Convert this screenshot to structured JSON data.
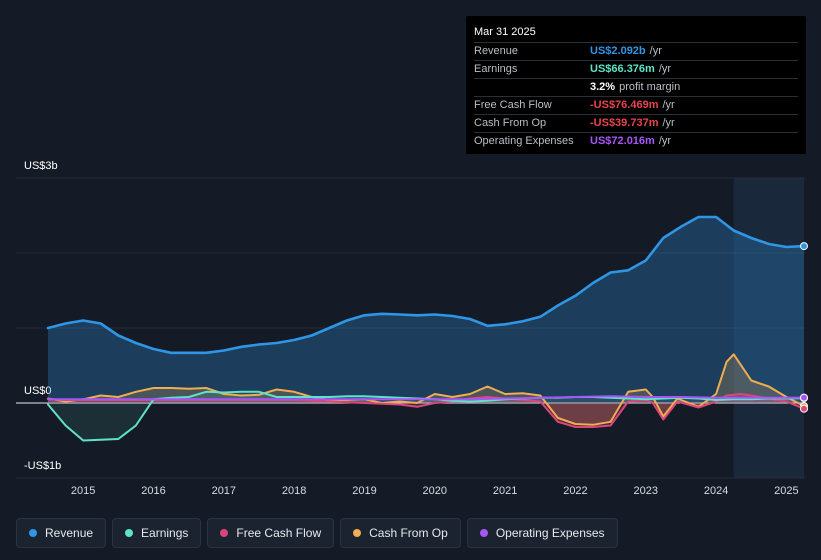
{
  "tooltip": {
    "date": "Mar 31 2025",
    "rows": [
      {
        "label": "Revenue",
        "value": "US$2.092b",
        "unit": "/yr",
        "color": "#2f96e6"
      },
      {
        "label": "Earnings",
        "value": "US$66.376m",
        "unit": "/yr",
        "color": "#5fe3c8"
      },
      {
        "label": "",
        "value": "3.2%",
        "unit": "profit margin",
        "color": "#ffffff"
      },
      {
        "label": "Free Cash Flow",
        "value": "-US$76.469m",
        "unit": "/yr",
        "color": "#e8434e"
      },
      {
        "label": "Cash From Op",
        "value": "-US$39.737m",
        "unit": "/yr",
        "color": "#e8434e"
      },
      {
        "label": "Operating Expenses",
        "value": "US$72.016m",
        "unit": "/yr",
        "color": "#a855f7"
      }
    ]
  },
  "legend": [
    {
      "label": "Revenue",
      "color": "#2f96e6"
    },
    {
      "label": "Earnings",
      "color": "#5fe3c8"
    },
    {
      "label": "Free Cash Flow",
      "color": "#d9477a"
    },
    {
      "label": "Cash From Op",
      "color": "#f0ad52"
    },
    {
      "label": "Operating Expenses",
      "color": "#a855f7"
    }
  ],
  "chart_data": {
    "type": "area",
    "title": "",
    "y_unit": "US$ billions",
    "ylim": [
      -1,
      3
    ],
    "y_ticks": [
      {
        "value": 3,
        "label": "US$3b"
      },
      {
        "value": 0,
        "label": "US$0"
      },
      {
        "value": -1,
        "label": "-US$1b"
      }
    ],
    "x_ticks": [
      "2015",
      "2016",
      "2017",
      "2018",
      "2019",
      "2020",
      "2021",
      "2022",
      "2023",
      "2024",
      "2025"
    ],
    "xlim": [
      2014.5,
      2025.25
    ],
    "highlight_from": 2024.25,
    "series": [
      {
        "name": "Revenue",
        "color": "#2f96e6",
        "points": [
          [
            2014.5,
            1.0
          ],
          [
            2014.75,
            1.06
          ],
          [
            2015.0,
            1.1
          ],
          [
            2015.25,
            1.06
          ],
          [
            2015.5,
            0.9
          ],
          [
            2015.75,
            0.8
          ],
          [
            2016.0,
            0.72
          ],
          [
            2016.25,
            0.67
          ],
          [
            2016.5,
            0.67
          ],
          [
            2016.75,
            0.67
          ],
          [
            2017.0,
            0.7
          ],
          [
            2017.25,
            0.75
          ],
          [
            2017.5,
            0.78
          ],
          [
            2017.75,
            0.8
          ],
          [
            2018.0,
            0.84
          ],
          [
            2018.25,
            0.9
          ],
          [
            2018.5,
            1.0
          ],
          [
            2018.75,
            1.1
          ],
          [
            2019.0,
            1.17
          ],
          [
            2019.25,
            1.19
          ],
          [
            2019.5,
            1.18
          ],
          [
            2019.75,
            1.17
          ],
          [
            2020.0,
            1.18
          ],
          [
            2020.25,
            1.16
          ],
          [
            2020.5,
            1.12
          ],
          [
            2020.75,
            1.03
          ],
          [
            2021.0,
            1.05
          ],
          [
            2021.25,
            1.09
          ],
          [
            2021.5,
            1.15
          ],
          [
            2021.75,
            1.3
          ],
          [
            2022.0,
            1.43
          ],
          [
            2022.25,
            1.6
          ],
          [
            2022.5,
            1.74
          ],
          [
            2022.75,
            1.77
          ],
          [
            2023.0,
            1.9
          ],
          [
            2023.25,
            2.2
          ],
          [
            2023.5,
            2.35
          ],
          [
            2023.75,
            2.48
          ],
          [
            2024.0,
            2.48
          ],
          [
            2024.25,
            2.3
          ],
          [
            2024.5,
            2.2
          ],
          [
            2024.75,
            2.12
          ],
          [
            2025.0,
            2.08
          ],
          [
            2025.25,
            2.092
          ]
        ]
      },
      {
        "name": "Earnings",
        "color": "#5fe3c8",
        "points": [
          [
            2014.5,
            -0.02
          ],
          [
            2014.75,
            -0.3
          ],
          [
            2015.0,
            -0.5
          ],
          [
            2015.25,
            -0.49
          ],
          [
            2015.5,
            -0.48
          ],
          [
            2015.75,
            -0.3
          ],
          [
            2016.0,
            0.05
          ],
          [
            2016.25,
            0.07
          ],
          [
            2016.5,
            0.08
          ],
          [
            2016.75,
            0.15
          ],
          [
            2017.0,
            0.14
          ],
          [
            2017.25,
            0.15
          ],
          [
            2017.5,
            0.15
          ],
          [
            2017.75,
            0.08
          ],
          [
            2018.0,
            0.08
          ],
          [
            2018.25,
            0.08
          ],
          [
            2018.5,
            0.08
          ],
          [
            2018.75,
            0.09
          ],
          [
            2019.0,
            0.09
          ],
          [
            2019.25,
            0.08
          ],
          [
            2019.5,
            0.07
          ],
          [
            2019.75,
            0.06
          ],
          [
            2020.0,
            0.05
          ],
          [
            2020.25,
            0.03
          ],
          [
            2020.5,
            0.02
          ],
          [
            2020.75,
            0.03
          ],
          [
            2021.0,
            0.05
          ],
          [
            2021.25,
            0.06
          ],
          [
            2021.5,
            0.07
          ],
          [
            2021.75,
            0.07
          ],
          [
            2022.0,
            0.08
          ],
          [
            2022.25,
            0.08
          ],
          [
            2022.5,
            0.07
          ],
          [
            2022.75,
            0.06
          ],
          [
            2023.0,
            0.05
          ],
          [
            2023.25,
            0.06
          ],
          [
            2023.5,
            0.07
          ],
          [
            2023.75,
            0.06
          ],
          [
            2024.0,
            0.04
          ],
          [
            2024.25,
            0.05
          ],
          [
            2024.5,
            0.05
          ],
          [
            2024.75,
            0.06
          ],
          [
            2025.0,
            0.06
          ],
          [
            2025.25,
            0.066
          ]
        ]
      },
      {
        "name": "Free Cash Flow",
        "color": "#d9477a",
        "points": [
          [
            2014.5,
            0.05
          ],
          [
            2014.75,
            0.04
          ],
          [
            2015.0,
            0.04
          ],
          [
            2015.5,
            0.04
          ],
          [
            2016.0,
            0.04
          ],
          [
            2016.5,
            0.04
          ],
          [
            2017.0,
            0.04
          ],
          [
            2017.5,
            0.04
          ],
          [
            2018.0,
            0.04
          ],
          [
            2018.5,
            0.02
          ],
          [
            2019.0,
            0.0
          ],
          [
            2019.5,
            -0.02
          ],
          [
            2019.75,
            -0.05
          ],
          [
            2020.0,
            0.0
          ],
          [
            2020.25,
            0.02
          ],
          [
            2020.5,
            0.06
          ],
          [
            2020.75,
            0.08
          ],
          [
            2021.0,
            0.06
          ],
          [
            2021.25,
            0.04
          ],
          [
            2021.5,
            0.02
          ],
          [
            2021.75,
            -0.25
          ],
          [
            2022.0,
            -0.32
          ],
          [
            2022.25,
            -0.32
          ],
          [
            2022.5,
            -0.3
          ],
          [
            2022.75,
            0.02
          ],
          [
            2023.0,
            0.04
          ],
          [
            2023.1,
            0.0
          ],
          [
            2023.25,
            -0.22
          ],
          [
            2023.45,
            0.02
          ],
          [
            2023.75,
            -0.06
          ],
          [
            2024.0,
            0.02
          ],
          [
            2024.15,
            0.1
          ],
          [
            2024.35,
            0.12
          ],
          [
            2024.5,
            0.1
          ],
          [
            2024.75,
            0.06
          ],
          [
            2025.0,
            0.02
          ],
          [
            2025.25,
            -0.076
          ]
        ]
      },
      {
        "name": "Cash From Op",
        "color": "#f0ad52",
        "points": [
          [
            2014.5,
            0.06
          ],
          [
            2014.75,
            0.02
          ],
          [
            2015.0,
            0.05
          ],
          [
            2015.25,
            0.1
          ],
          [
            2015.5,
            0.08
          ],
          [
            2015.75,
            0.15
          ],
          [
            2016.0,
            0.2
          ],
          [
            2016.25,
            0.2
          ],
          [
            2016.5,
            0.19
          ],
          [
            2016.75,
            0.2
          ],
          [
            2017.0,
            0.12
          ],
          [
            2017.25,
            0.1
          ],
          [
            2017.5,
            0.11
          ],
          [
            2017.75,
            0.18
          ],
          [
            2018.0,
            0.15
          ],
          [
            2018.25,
            0.08
          ],
          [
            2018.5,
            0.04
          ],
          [
            2018.75,
            0.04
          ],
          [
            2019.0,
            0.05
          ],
          [
            2019.25,
            0.0
          ],
          [
            2019.5,
            0.02
          ],
          [
            2019.75,
            0.0
          ],
          [
            2020.0,
            0.12
          ],
          [
            2020.25,
            0.08
          ],
          [
            2020.5,
            0.12
          ],
          [
            2020.75,
            0.22
          ],
          [
            2021.0,
            0.12
          ],
          [
            2021.25,
            0.13
          ],
          [
            2021.5,
            0.1
          ],
          [
            2021.75,
            -0.2
          ],
          [
            2022.0,
            -0.28
          ],
          [
            2022.25,
            -0.29
          ],
          [
            2022.5,
            -0.25
          ],
          [
            2022.75,
            0.15
          ],
          [
            2023.0,
            0.18
          ],
          [
            2023.1,
            0.08
          ],
          [
            2023.25,
            -0.18
          ],
          [
            2023.45,
            0.06
          ],
          [
            2023.75,
            -0.05
          ],
          [
            2024.0,
            0.12
          ],
          [
            2024.15,
            0.55
          ],
          [
            2024.25,
            0.65
          ],
          [
            2024.5,
            0.3
          ],
          [
            2024.75,
            0.22
          ],
          [
            2025.0,
            0.08
          ],
          [
            2025.25,
            -0.04
          ]
        ]
      },
      {
        "name": "Operating Expenses",
        "color": "#a855f7",
        "points": [
          [
            2014.5,
            0.05
          ],
          [
            2015.0,
            0.05
          ],
          [
            2016.0,
            0.05
          ],
          [
            2017.0,
            0.05
          ],
          [
            2018.0,
            0.05
          ],
          [
            2019.0,
            0.05
          ],
          [
            2020.0,
            0.05
          ],
          [
            2020.5,
            0.05
          ],
          [
            2021.0,
            0.06
          ],
          [
            2021.5,
            0.07
          ],
          [
            2022.0,
            0.08
          ],
          [
            2022.5,
            0.09
          ],
          [
            2023.0,
            0.08
          ],
          [
            2023.5,
            0.08
          ],
          [
            2024.0,
            0.07
          ],
          [
            2024.5,
            0.07
          ],
          [
            2025.0,
            0.07
          ],
          [
            2025.25,
            0.072
          ]
        ]
      }
    ]
  }
}
